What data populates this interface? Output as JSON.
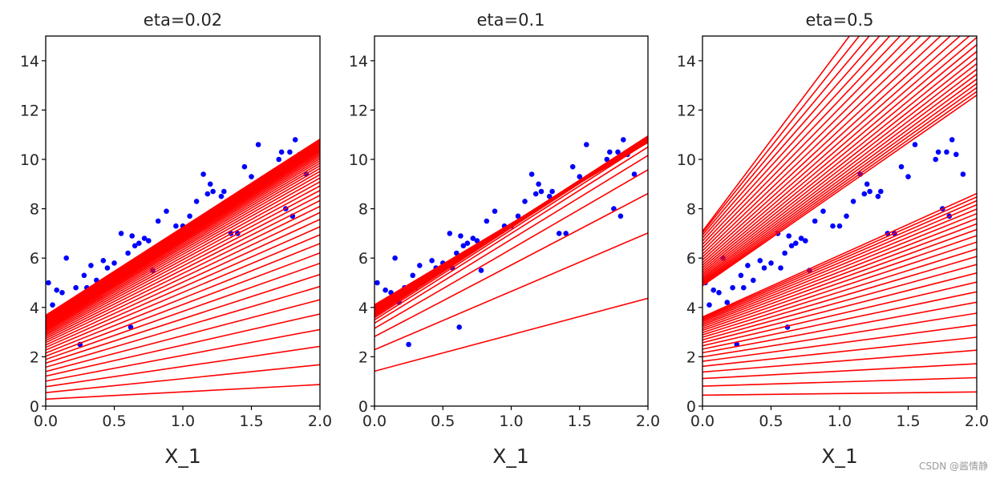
{
  "figure": {
    "watermark": "CSDN @酱情静"
  },
  "colors": {
    "points": "#0000ff",
    "lines": "#ff0000",
    "axes": "#000000",
    "text": "#262626"
  },
  "chart_data": [
    {
      "type": "scatter",
      "title": "eta=0.02",
      "xlabel": "X_1",
      "ylabel": "",
      "xlim": [
        0,
        2
      ],
      "ylim": [
        0,
        15
      ],
      "xticks": [
        "0.0",
        "0.5",
        "1.0",
        "1.5",
        "2.0"
      ],
      "yticks": [
        "0",
        "2",
        "4",
        "6",
        "8",
        "10",
        "12",
        "14"
      ],
      "points_x": [
        0.02,
        0.05,
        0.08,
        0.12,
        0.15,
        0.18,
        0.22,
        0.25,
        0.28,
        0.3,
        0.33,
        0.37,
        0.42,
        0.45,
        0.5,
        0.55,
        0.57,
        0.6,
        0.62,
        0.63,
        0.65,
        0.68,
        0.72,
        0.75,
        0.78,
        0.82,
        0.88,
        0.95,
        1.0,
        1.05,
        1.1,
        1.15,
        1.18,
        1.2,
        1.22,
        1.28,
        1.3,
        1.35,
        1.4,
        1.45,
        1.5,
        1.55,
        1.7,
        1.72,
        1.75,
        1.78,
        1.8,
        1.82,
        1.85,
        1.9
      ],
      "points_y": [
        5.0,
        4.1,
        4.7,
        4.6,
        6.0,
        4.2,
        4.8,
        2.5,
        5.3,
        4.8,
        5.7,
        5.1,
        5.9,
        5.6,
        5.8,
        7.0,
        5.6,
        6.2,
        3.2,
        6.9,
        6.5,
        6.6,
        6.8,
        6.7,
        5.5,
        7.5,
        7.9,
        7.3,
        7.3,
        7.7,
        8.3,
        9.4,
        8.6,
        9.0,
        8.7,
        8.5,
        8.7,
        7.0,
        7.0,
        9.7,
        9.3,
        10.6,
        10.0,
        10.3,
        8.0,
        10.3,
        7.7,
        10.8,
        10.2,
        9.4
      ],
      "lines_from": [
        0.3,
        0.3
      ],
      "lines_to": [
        3.8,
        5.2
      ],
      "line_count": 50,
      "learning_rate": 0.02
    },
    {
      "type": "scatter",
      "title": "eta=0.1",
      "xlabel": "X_1",
      "ylabel": "",
      "xlim": [
        0,
        2
      ],
      "ylim": [
        0,
        15
      ],
      "xticks": [
        "0.0",
        "0.5",
        "1.0",
        "1.5",
        "2.0"
      ],
      "yticks": [
        "0",
        "2",
        "4",
        "6",
        "8",
        "10",
        "12",
        "14"
      ],
      "points_x": [
        0.02,
        0.05,
        0.08,
        0.12,
        0.15,
        0.18,
        0.22,
        0.25,
        0.28,
        0.3,
        0.33,
        0.37,
        0.42,
        0.45,
        0.5,
        0.55,
        0.57,
        0.6,
        0.62,
        0.63,
        0.65,
        0.68,
        0.72,
        0.75,
        0.78,
        0.82,
        0.88,
        0.95,
        1.0,
        1.05,
        1.1,
        1.15,
        1.18,
        1.2,
        1.22,
        1.28,
        1.3,
        1.35,
        1.4,
        1.45,
        1.5,
        1.55,
        1.7,
        1.72,
        1.75,
        1.78,
        1.8,
        1.82,
        1.85,
        1.9
      ],
      "points_y": [
        5.0,
        4.1,
        4.7,
        4.6,
        6.0,
        4.2,
        4.8,
        2.5,
        5.3,
        4.8,
        5.7,
        5.1,
        5.9,
        5.6,
        5.8,
        7.0,
        5.6,
        6.2,
        3.2,
        6.9,
        6.5,
        6.6,
        6.8,
        6.7,
        5.5,
        7.5,
        7.9,
        7.3,
        7.3,
        7.7,
        8.3,
        9.4,
        8.6,
        9.0,
        8.7,
        8.5,
        8.7,
        7.0,
        7.0,
        9.7,
        9.3,
        10.6,
        10.0,
        10.3,
        8.0,
        10.3,
        7.7,
        10.8,
        10.2,
        9.4
      ],
      "lines_from": [
        0.3,
        0.3
      ],
      "lines_to": [
        3.8,
        5.2
      ],
      "line_count": 50,
      "learning_rate": 0.1
    },
    {
      "type": "scatter",
      "title": "eta=0.5",
      "xlabel": "X_1",
      "ylabel": "",
      "xlim": [
        0,
        2
      ],
      "ylim": [
        0,
        15
      ],
      "xticks": [
        "0.0",
        "0.5",
        "1.0",
        "1.5",
        "2.0"
      ],
      "yticks": [
        "0",
        "2",
        "4",
        "6",
        "8",
        "10",
        "12",
        "14"
      ],
      "points_x": [
        0.02,
        0.05,
        0.08,
        0.12,
        0.15,
        0.18,
        0.22,
        0.25,
        0.28,
        0.3,
        0.33,
        0.37,
        0.42,
        0.45,
        0.5,
        0.55,
        0.57,
        0.6,
        0.62,
        0.63,
        0.65,
        0.68,
        0.72,
        0.75,
        0.78,
        0.82,
        0.88,
        0.95,
        1.0,
        1.05,
        1.1,
        1.15,
        1.18,
        1.2,
        1.22,
        1.28,
        1.3,
        1.35,
        1.4,
        1.45,
        1.5,
        1.55,
        1.7,
        1.72,
        1.75,
        1.78,
        1.8,
        1.82,
        1.85,
        1.9
      ],
      "points_y": [
        5.0,
        4.1,
        4.7,
        4.6,
        6.0,
        4.2,
        4.8,
        2.5,
        5.3,
        4.8,
        5.7,
        5.1,
        5.9,
        5.6,
        5.8,
        7.0,
        5.6,
        6.2,
        3.2,
        6.9,
        6.5,
        6.6,
        6.8,
        6.7,
        5.5,
        7.5,
        7.9,
        7.3,
        7.3,
        7.7,
        8.3,
        9.4,
        8.6,
        9.0,
        8.7,
        8.5,
        8.7,
        7.0,
        7.0,
        9.7,
        9.3,
        10.6,
        10.0,
        10.3,
        8.0,
        10.3,
        7.7,
        10.8,
        10.2,
        9.4
      ],
      "lines_from": [
        0.3,
        0.3
      ],
      "lines_to": [
        3.8,
        5.2
      ],
      "line_count": 50,
      "learning_rate": 0.5
    }
  ]
}
